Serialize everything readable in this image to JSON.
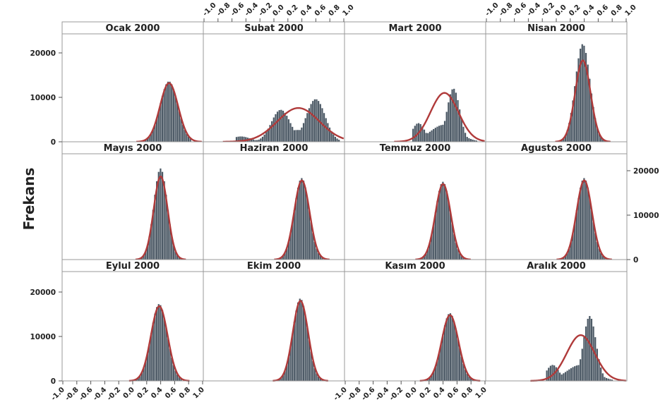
{
  "chart_data": {
    "type": "histogram-facet",
    "ylabel": "Frekans",
    "x_ticks": [
      "-1.0",
      "-0.8",
      "-0.6",
      "-0.4",
      "-0.2",
      "0.0",
      "0.2",
      "0.4",
      "0.6",
      "0.8",
      "1.0"
    ],
    "xlim": [
      -1.0,
      1.0
    ],
    "y_ticks": [
      "0",
      "10000",
      "20000"
    ],
    "ylim": [
      0,
      24500
    ],
    "colors": {
      "bar": "#4d5a66",
      "curve": "#b03a3a"
    },
    "panels": [
      {
        "title": "Ocak 2000",
        "mean": 0.52,
        "sd": 0.13,
        "peak": 13200,
        "range": [
          0.15,
          0.85
        ],
        "bimodal": false
      },
      {
        "title": "Subat 2000",
        "mean": 0.35,
        "sd": 0.3,
        "peak": 7600,
        "range": [
          -0.55,
          0.95
        ],
        "bimodal": true,
        "hist_peaks": [
          [
            -0.47,
            1200
          ],
          [
            0.1,
            7200
          ],
          [
            0.6,
            9600
          ]
        ]
      },
      {
        "title": "Mart 2000",
        "mean": 0.42,
        "sd": 0.2,
        "peak": 11000,
        "range": [
          -0.05,
          0.9
        ],
        "bimodal": true,
        "hist_peaks": [
          [
            0.05,
            4200
          ],
          [
            0.55,
            12000
          ]
        ]
      },
      {
        "title": "Nisan 2000",
        "mean": 0.38,
        "sd": 0.11,
        "peak": 18300,
        "range": [
          0.05,
          0.7
        ],
        "bimodal": false,
        "hist_peak": 22000
      },
      {
        "title": "Mayıs 2000",
        "mean": 0.4,
        "sd": 0.1,
        "peak": 18700,
        "range": [
          0.1,
          0.7
        ],
        "bimodal": false,
        "hist_peak": 20500
      },
      {
        "title": "Haziran 2000",
        "mean": 0.4,
        "sd": 0.11,
        "peak": 17800,
        "range": [
          0.05,
          0.72
        ],
        "bimodal": false
      },
      {
        "title": "Temmuz 2000",
        "mean": 0.4,
        "sd": 0.11,
        "peak": 17000,
        "range": [
          0.05,
          0.72
        ],
        "bimodal": false
      },
      {
        "title": "Agustos 2000",
        "mean": 0.4,
        "sd": 0.11,
        "peak": 17800,
        "range": [
          0.05,
          0.72
        ],
        "bimodal": false
      },
      {
        "title": "Eylul 2000",
        "mean": 0.38,
        "sd": 0.12,
        "peak": 16800,
        "range": [
          0.02,
          0.72
        ],
        "bimodal": false
      },
      {
        "title": "Ekim 2000",
        "mean": 0.38,
        "sd": 0.11,
        "peak": 18000,
        "range": [
          0.05,
          0.7
        ],
        "bimodal": false
      },
      {
        "title": "Kasım 2000",
        "mean": 0.5,
        "sd": 0.12,
        "peak": 14800,
        "range": [
          0.15,
          0.85
        ],
        "bimodal": false
      },
      {
        "title": "Aralık 2000",
        "mean": 0.35,
        "sd": 0.2,
        "peak": 10300,
        "range": [
          -0.15,
          0.8
        ],
        "bimodal": true,
        "hist_peaks": [
          [
            -0.05,
            3600
          ],
          [
            0.48,
            14600
          ]
        ]
      }
    ]
  }
}
